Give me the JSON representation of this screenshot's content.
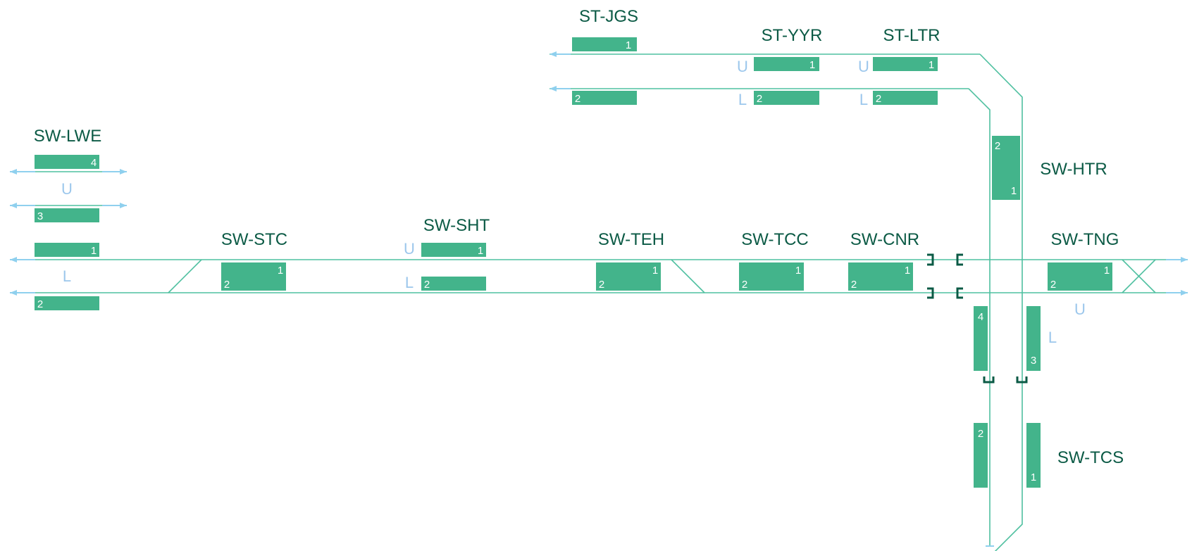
{
  "colors": {
    "track": "#4fc0a0",
    "track_end": "#8fd0ee",
    "platform": "#43b48b",
    "station_label": "#0b5a45",
    "track_label": "#9cc7ec",
    "platform_number": "#ffffff"
  },
  "stations": [
    {
      "id": "sw-lwe",
      "name": "SW-LWE"
    },
    {
      "id": "st-jgs",
      "name": "ST-JGS"
    },
    {
      "id": "st-yyr",
      "name": "ST-YYR"
    },
    {
      "id": "st-ltr",
      "name": "ST-LTR"
    },
    {
      "id": "sw-htr",
      "name": "SW-HTR"
    },
    {
      "id": "sw-stc",
      "name": "SW-STC"
    },
    {
      "id": "sw-sht",
      "name": "SW-SHT"
    },
    {
      "id": "sw-teh",
      "name": "SW-TEH"
    },
    {
      "id": "sw-tcc",
      "name": "SW-TCC"
    },
    {
      "id": "sw-cnr",
      "name": "SW-CNR"
    },
    {
      "id": "sw-tng",
      "name": "SW-TNG"
    },
    {
      "id": "sw-tcs",
      "name": "SW-TCS"
    }
  ],
  "track_labels": {
    "upper": "U",
    "lower": "L"
  },
  "platform_numbers": [
    "1",
    "2",
    "3",
    "4"
  ]
}
